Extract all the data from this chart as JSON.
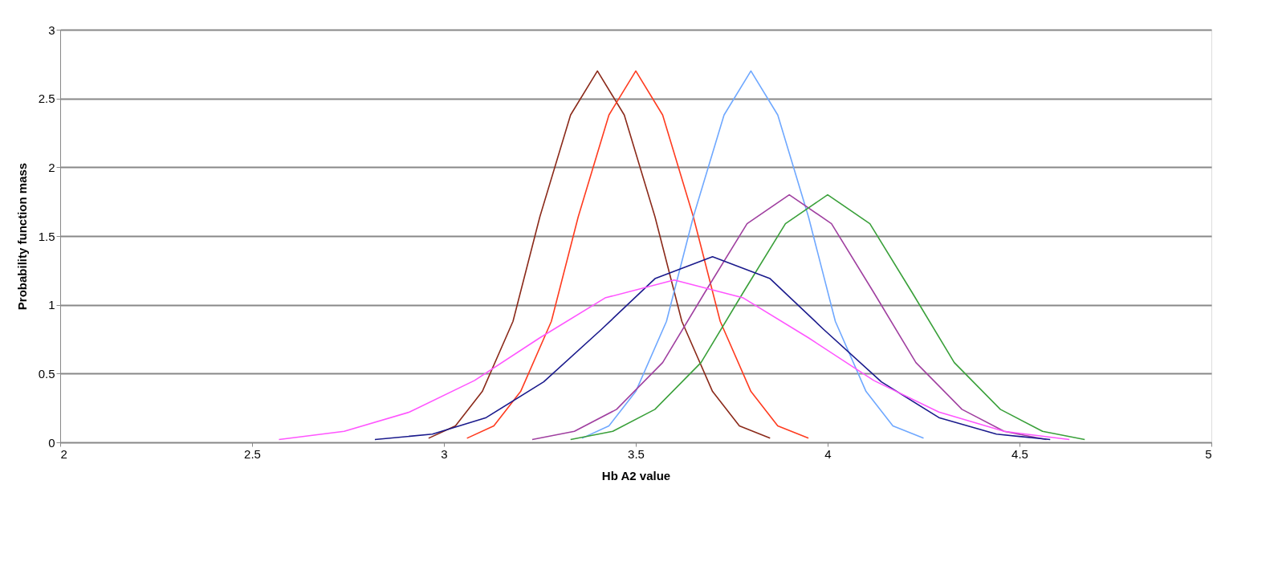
{
  "chart_data": {
    "type": "line",
    "xlabel": "Hb A2 value",
    "ylabel": "Probability function mass",
    "xlim": [
      2,
      5
    ],
    "xticks": [
      2,
      2.5,
      3,
      3.5,
      4,
      4.5,
      5
    ],
    "ylim": [
      0,
      3
    ],
    "yticks": [
      0,
      0.5,
      1,
      1.5,
      2,
      2.5,
      3
    ],
    "grid": "y",
    "legend": false,
    "marker": "none",
    "line_style": "solid",
    "series": [
      {
        "color": "#8b2a1a",
        "x": [
          2.96,
          3.03,
          3.1,
          3.18,
          3.25,
          3.33,
          3.4,
          3.47,
          3.55,
          3.62,
          3.7,
          3.77,
          3.85
        ],
        "values": [
          0.03,
          0.12,
          0.37,
          0.88,
          1.64,
          2.38,
          2.7,
          2.38,
          1.64,
          0.88,
          0.37,
          0.12,
          0.03
        ]
      },
      {
        "color": "#ff3b1f",
        "x": [
          3.06,
          3.13,
          3.2,
          3.28,
          3.35,
          3.43,
          3.5,
          3.57,
          3.65,
          3.72,
          3.8,
          3.87,
          3.95
        ],
        "values": [
          0.03,
          0.12,
          0.37,
          0.88,
          1.64,
          2.38,
          2.7,
          2.38,
          1.64,
          0.88,
          0.37,
          0.12,
          0.03
        ]
      },
      {
        "color": "#6fa8ff",
        "x": [
          3.36,
          3.43,
          3.5,
          3.58,
          3.65,
          3.73,
          3.8,
          3.87,
          3.95,
          4.02,
          4.1,
          4.17,
          4.25
        ],
        "values": [
          0.03,
          0.12,
          0.37,
          0.88,
          1.64,
          2.38,
          2.7,
          2.38,
          1.64,
          0.88,
          0.37,
          0.12,
          0.03
        ]
      },
      {
        "color": "#a040a0",
        "x": [
          3.23,
          3.34,
          3.45,
          3.57,
          3.68,
          3.79,
          3.9,
          4.01,
          4.12,
          4.23,
          4.35,
          4.46,
          4.57
        ],
        "values": [
          0.02,
          0.08,
          0.24,
          0.58,
          1.09,
          1.59,
          1.8,
          1.59,
          1.09,
          0.58,
          0.24,
          0.08,
          0.02
        ]
      },
      {
        "color": "#3aa03a",
        "x": [
          3.33,
          3.44,
          3.55,
          3.67,
          3.78,
          3.89,
          4.0,
          4.11,
          4.22,
          4.33,
          4.45,
          4.56,
          4.67
        ],
        "values": [
          0.02,
          0.08,
          0.24,
          0.58,
          1.09,
          1.59,
          1.8,
          1.59,
          1.09,
          0.58,
          0.24,
          0.08,
          0.02
        ]
      },
      {
        "color": "#1a1a8c",
        "x": [
          2.82,
          2.97,
          3.11,
          3.26,
          3.41,
          3.55,
          3.7,
          3.85,
          3.99,
          4.14,
          4.29,
          4.44,
          4.58
        ],
        "values": [
          0.02,
          0.06,
          0.18,
          0.44,
          0.82,
          1.19,
          1.35,
          1.19,
          0.82,
          0.44,
          0.18,
          0.06,
          0.02
        ]
      },
      {
        "color": "#ff55ff",
        "x": [
          2.57,
          2.74,
          2.91,
          3.08,
          3.25,
          3.42,
          3.6,
          3.78,
          3.95,
          4.12,
          4.29,
          4.46,
          4.63
        ],
        "values": [
          0.02,
          0.08,
          0.22,
          0.45,
          0.76,
          1.05,
          1.18,
          1.05,
          0.76,
          0.45,
          0.22,
          0.08,
          0.02
        ]
      }
    ]
  }
}
